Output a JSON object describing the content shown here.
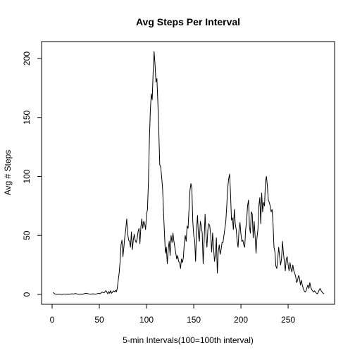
{
  "chart_data": {
    "type": "line",
    "title": "Avg Steps Per Interval",
    "xlabel": "5-min Intervals(100=100th interval)",
    "ylabel": "Avg # Steps",
    "xlim": [
      0,
      288
    ],
    "ylim": [
      0,
      206
    ],
    "xticks": [
      0,
      50,
      100,
      150,
      200,
      250
    ],
    "yticks": [
      0,
      50,
      100,
      150,
      200
    ],
    "grid": false,
    "series": [
      {
        "color": "#000000",
        "points": [
          [
            1,
            1.7
          ],
          [
            3,
            0.3
          ],
          [
            5,
            0.1
          ],
          [
            7,
            0.2
          ],
          [
            9,
            0.1
          ],
          [
            11,
            0
          ],
          [
            13,
            0.4
          ],
          [
            15,
            0.1
          ],
          [
            17,
            0.3
          ],
          [
            19,
            0.2
          ],
          [
            21,
            0.5
          ],
          [
            23,
            0.4
          ],
          [
            25,
            0.8
          ],
          [
            27,
            0.2
          ],
          [
            29,
            0.1
          ],
          [
            31,
            0.3
          ],
          [
            33,
            0.2
          ],
          [
            35,
            1
          ],
          [
            37,
            0.8
          ],
          [
            39,
            0.4
          ],
          [
            41,
            0.2
          ],
          [
            43,
            0.5
          ],
          [
            45,
            0.3
          ],
          [
            47,
            0.4
          ],
          [
            49,
            1
          ],
          [
            51,
            0.6
          ],
          [
            53,
            2
          ],
          [
            55,
            1.3
          ],
          [
            57,
            3.2
          ],
          [
            59,
            0.5
          ],
          [
            60,
            2.5
          ],
          [
            61,
            1
          ],
          [
            62,
            3.2
          ],
          [
            63,
            1
          ],
          [
            64,
            2
          ],
          [
            65,
            3
          ],
          [
            66,
            2.2
          ],
          [
            67,
            3.5
          ],
          [
            68,
            2.1
          ],
          [
            69,
            5
          ],
          [
            70,
            12
          ],
          [
            71,
            18
          ],
          [
            72,
            28
          ],
          [
            73,
            42
          ],
          [
            74,
            46
          ],
          [
            75,
            32
          ],
          [
            76,
            40
          ],
          [
            77,
            49
          ],
          [
            78,
            55
          ],
          [
            79,
            64
          ],
          [
            80,
            52
          ],
          [
            81,
            46
          ],
          [
            82,
            45
          ],
          [
            83,
            40
          ],
          [
            84,
            53
          ],
          [
            85,
            38
          ],
          [
            86,
            46
          ],
          [
            87,
            51
          ],
          [
            88,
            46
          ],
          [
            89,
            44
          ],
          [
            90,
            47
          ],
          [
            91,
            53
          ],
          [
            92,
            56
          ],
          [
            93,
            43
          ],
          [
            94,
            57
          ],
          [
            95,
            64
          ],
          [
            96,
            56
          ],
          [
            97,
            62
          ],
          [
            98,
            60
          ],
          [
            99,
            55
          ],
          [
            100,
            68
          ],
          [
            101,
            72
          ],
          [
            102,
            95
          ],
          [
            103,
            130
          ],
          [
            104,
            155
          ],
          [
            105,
            170
          ],
          [
            106,
            165
          ],
          [
            107,
            188
          ],
          [
            108,
            206
          ],
          [
            109,
            195
          ],
          [
            110,
            180
          ],
          [
            111,
            183
          ],
          [
            112,
            163
          ],
          [
            113,
            138
          ],
          [
            114,
            110
          ],
          [
            115,
            108
          ],
          [
            116,
            100
          ],
          [
            117,
            90
          ],
          [
            118,
            70
          ],
          [
            119,
            52
          ],
          [
            120,
            35
          ],
          [
            121,
            40
          ],
          [
            122,
            26
          ],
          [
            123,
            38
          ],
          [
            124,
            45
          ],
          [
            125,
            33
          ],
          [
            126,
            50
          ],
          [
            127,
            44
          ],
          [
            128,
            52
          ],
          [
            129,
            45
          ],
          [
            130,
            40
          ],
          [
            131,
            35
          ],
          [
            132,
            30
          ],
          [
            133,
            33
          ],
          [
            134,
            28
          ],
          [
            135,
            27
          ],
          [
            136,
            22
          ],
          [
            137,
            30
          ],
          [
            138,
            27
          ],
          [
            139,
            31
          ],
          [
            140,
            43
          ],
          [
            141,
            50
          ],
          [
            142,
            45
          ],
          [
            143,
            58
          ],
          [
            144,
            56
          ],
          [
            145,
            72
          ],
          [
            146,
            88
          ],
          [
            147,
            94
          ],
          [
            148,
            90
          ],
          [
            149,
            62
          ],
          [
            150,
            50
          ],
          [
            151,
            46
          ],
          [
            152,
            28
          ],
          [
            153,
            55
          ],
          [
            154,
            67
          ],
          [
            155,
            50
          ],
          [
            156,
            45
          ],
          [
            157,
            62
          ],
          [
            158,
            58
          ],
          [
            159,
            52
          ],
          [
            160,
            26
          ],
          [
            161,
            45
          ],
          [
            162,
            68
          ],
          [
            163,
            50
          ],
          [
            164,
            40
          ],
          [
            165,
            55
          ],
          [
            166,
            60
          ],
          [
            167,
            58
          ],
          [
            168,
            50
          ],
          [
            169,
            36
          ],
          [
            170,
            52
          ],
          [
            171,
            40
          ],
          [
            172,
            28
          ],
          [
            173,
            34
          ],
          [
            174,
            48
          ],
          [
            175,
            18
          ],
          [
            176,
            36
          ],
          [
            177,
            42
          ],
          [
            178,
            34
          ],
          [
            179,
            38
          ],
          [
            180,
            44
          ],
          [
            181,
            44
          ],
          [
            182,
            50
          ],
          [
            183,
            56
          ],
          [
            184,
            62
          ],
          [
            185,
            75
          ],
          [
            186,
            90
          ],
          [
            187,
            98
          ],
          [
            188,
            102
          ],
          [
            189,
            85
          ],
          [
            190,
            63
          ],
          [
            191,
            65
          ],
          [
            192,
            55
          ],
          [
            193,
            72
          ],
          [
            194,
            60
          ],
          [
            195,
            55
          ],
          [
            196,
            45
          ],
          [
            197,
            40
          ],
          [
            198,
            55
          ],
          [
            199,
            61
          ],
          [
            200,
            51
          ],
          [
            201,
            45
          ],
          [
            202,
            46
          ],
          [
            203,
            42
          ],
          [
            204,
            40
          ],
          [
            205,
            55
          ],
          [
            206,
            62
          ],
          [
            207,
            75
          ],
          [
            208,
            80
          ],
          [
            209,
            58
          ],
          [
            210,
            52
          ],
          [
            211,
            70
          ],
          [
            212,
            68
          ],
          [
            213,
            48
          ],
          [
            214,
            62
          ],
          [
            215,
            50
          ],
          [
            216,
            35
          ],
          [
            217,
            48
          ],
          [
            218,
            55
          ],
          [
            219,
            75
          ],
          [
            220,
            82
          ],
          [
            221,
            60
          ],
          [
            222,
            86
          ],
          [
            223,
            70
          ],
          [
            224,
            78
          ],
          [
            225,
            75
          ],
          [
            226,
            96
          ],
          [
            227,
            100
          ],
          [
            228,
            92
          ],
          [
            229,
            80
          ],
          [
            230,
            78
          ],
          [
            231,
            75
          ],
          [
            232,
            70
          ],
          [
            233,
            72
          ],
          [
            234,
            60
          ],
          [
            235,
            40
          ],
          [
            236,
            36
          ],
          [
            237,
            24
          ],
          [
            238,
            22
          ],
          [
            239,
            30
          ],
          [
            240,
            40
          ],
          [
            241,
            32
          ],
          [
            242,
            25
          ],
          [
            243,
            30
          ],
          [
            244,
            45
          ],
          [
            245,
            35
          ],
          [
            246,
            28
          ],
          [
            247,
            20
          ],
          [
            248,
            30
          ],
          [
            249,
            32
          ],
          [
            250,
            25
          ],
          [
            251,
            20
          ],
          [
            252,
            27
          ],
          [
            253,
            22
          ],
          [
            254,
            19
          ],
          [
            255,
            25
          ],
          [
            256,
            20
          ],
          [
            257,
            18
          ],
          [
            258,
            15
          ],
          [
            259,
            10
          ],
          [
            260,
            12
          ],
          [
            261,
            16
          ],
          [
            262,
            14
          ],
          [
            263,
            8
          ],
          [
            264,
            12
          ],
          [
            265,
            8
          ],
          [
            266,
            5
          ],
          [
            267,
            3
          ],
          [
            268,
            2
          ],
          [
            269,
            3
          ],
          [
            270,
            6
          ],
          [
            271,
            8
          ],
          [
            272,
            5
          ],
          [
            273,
            10
          ],
          [
            274,
            6
          ],
          [
            275,
            4
          ],
          [
            276,
            3
          ],
          [
            277,
            2
          ],
          [
            278,
            3
          ],
          [
            279,
            2
          ],
          [
            280,
            1
          ],
          [
            281,
            0.5
          ],
          [
            282,
            2
          ],
          [
            283,
            4
          ],
          [
            284,
            5
          ],
          [
            285,
            3
          ],
          [
            286,
            2
          ],
          [
            287,
            1
          ],
          [
            288,
            0.5
          ]
        ]
      }
    ]
  }
}
